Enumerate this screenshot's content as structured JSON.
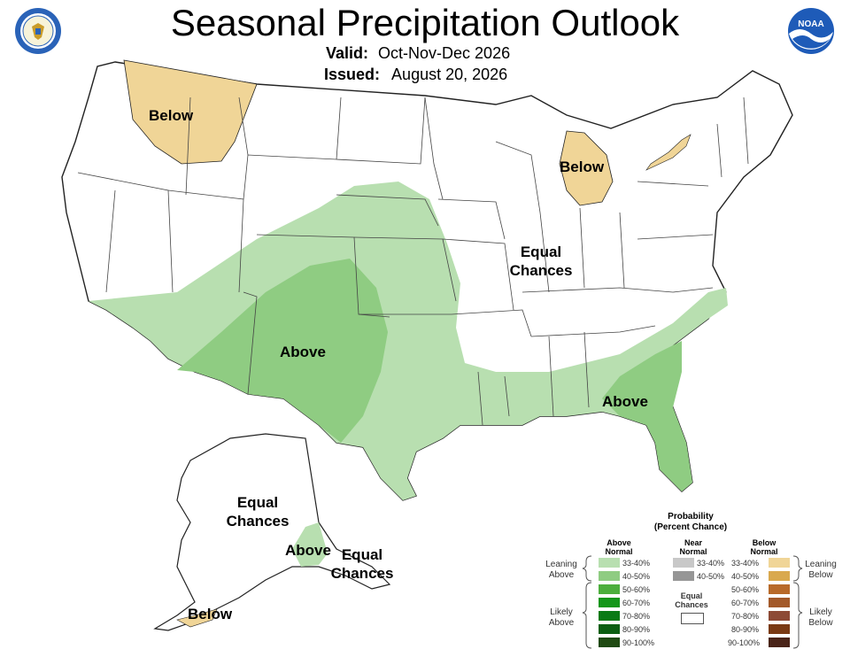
{
  "title": "Seasonal Precipitation Outlook",
  "valid_label": "Valid:",
  "valid_value": "Oct-Nov-Dec 2026",
  "issued_label": "Issued:",
  "issued_value": "August 20, 2026",
  "logos": {
    "left": "department-of-commerce-seal",
    "right": "NOAA"
  },
  "map_labels": {
    "nw_below": "Below",
    "mi_below": "Below",
    "central_equal": [
      "Equal",
      "Chances"
    ],
    "sw_above": "Above",
    "se_above": "Above",
    "ak_equal": [
      "Equal",
      "Chances"
    ],
    "ak_above": "Above",
    "ak_se_equal": [
      "Equal",
      "Chances"
    ],
    "ak_below": "Below"
  },
  "colors": {
    "above_33_40": "#b8dfb0",
    "above_40_50": "#8fcc82",
    "above_50_60": "#4cae3c",
    "above_60_70": "#14961a",
    "above_70_80": "#0a7a16",
    "above_80_90": "#0b5e12",
    "above_90_100": "#1f4a12",
    "near_33_40": "#c8c8c8",
    "near_40_50": "#969696",
    "below_33_40": "#f0d597",
    "below_40_50": "#d9a94e",
    "below_50_60": "#b86a2a",
    "below_60_70": "#a35a2a",
    "below_70_80": "#8d4a36",
    "below_80_90": "#7a3a14",
    "below_90_100": "#4a2418"
  },
  "legend": {
    "title": "Probability",
    "subtitle": "(Percent Chance)",
    "above_header": [
      "Above",
      "Normal"
    ],
    "near_header": [
      "Near",
      "Normal"
    ],
    "below_header": [
      "Below",
      "Normal"
    ],
    "above_rows": [
      "33-40%",
      "40-50%",
      "50-60%",
      "60-70%",
      "70-80%",
      "80-90%",
      "90-100%"
    ],
    "near_rows": [
      "33-40%",
      "40-50%"
    ],
    "below_rows": [
      "33-40%",
      "40-50%",
      "50-60%",
      "60-70%",
      "70-80%",
      "80-90%",
      "90-100%"
    ],
    "equal_chances": [
      "Equal",
      "Chances"
    ],
    "leaning_above": [
      "Leaning",
      "Above"
    ],
    "likely_above": [
      "Likely",
      "Above"
    ],
    "leaning_below": [
      "Leaning",
      "Below"
    ],
    "likely_below": [
      "Likely",
      "Below"
    ]
  }
}
